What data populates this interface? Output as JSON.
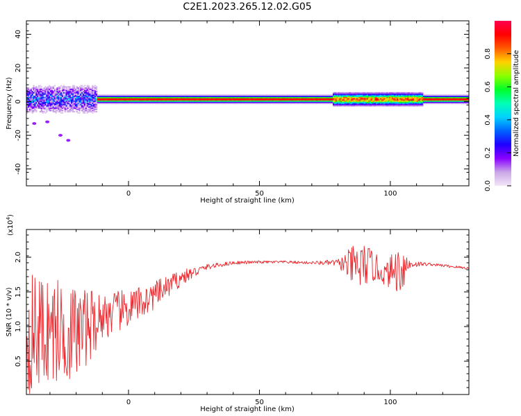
{
  "figure": {
    "title": "C2E1.2023.265.12.02.G05"
  },
  "chart_data": [
    {
      "type": "heatmap",
      "xlabel": "Height of straight line (km)",
      "ylabel": "Frequency (Hz)",
      "xlim": [
        -39,
        130
      ],
      "ylim": [
        -50,
        48
      ],
      "x_ticks": [
        0,
        50,
        100
      ],
      "y_ticks": [
        -40,
        -20,
        0,
        20,
        40
      ],
      "x_tick_labels": [
        "0",
        "50",
        "100"
      ],
      "y_tick_labels": [
        "-40",
        "-20",
        "0",
        "20",
        "40"
      ],
      "colorbar": {
        "label": "Normalized spectral amplitude",
        "range": [
          0,
          1
        ],
        "ticks": [
          0,
          0.2,
          0.4,
          0.6,
          0.8
        ],
        "tick_labels": [
          "0.0",
          "0.2",
          "0.4",
          "0.6",
          "0.8"
        ],
        "colormap": [
          "#f4e6f7",
          "#c9a6e6",
          "#8a00ff",
          "#1e00ff",
          "#0064ff",
          "#00d2ff",
          "#00ffb4",
          "#00ff28",
          "#8cff00",
          "#ffd200",
          "#ff5a00",
          "#ff0000",
          "#ff0050"
        ]
      },
      "band": {
        "center_hz": 1.5,
        "core_amplitude": 0.95,
        "x_start_km": -12
      },
      "noisy_region_km": [
        -39,
        -12
      ],
      "noisy_region_freq_hz": [
        -6,
        10
      ],
      "disturbed_region_km": [
        78,
        112
      ],
      "grid": false
    },
    {
      "type": "line",
      "xlabel": "Height of straight line (km)",
      "ylabel": "SNR (10 * v/v)",
      "y_multiplier_label": "(x10",
      "y_multiplier_exp": "4",
      "y_multiplier_close": ")",
      "xlim": [
        -39,
        130
      ],
      "ylim": [
        0.02,
        2.4
      ],
      "x_ticks": [
        0,
        50,
        100
      ],
      "y_ticks": [
        0.5,
        1.0,
        1.5,
        2.0
      ],
      "x_tick_labels": [
        "0",
        "50",
        "100"
      ],
      "y_tick_labels": [
        "0.5",
        "1.0",
        "1.5",
        "2.0"
      ],
      "line_color": "#e8262b",
      "series": [
        {
          "x": [
            -39,
            -30,
            -20,
            -10,
            0,
            10,
            20,
            30,
            40,
            50,
            60,
            70,
            80,
            88,
            92,
            98,
            104,
            108,
            115,
            125,
            130
          ],
          "y": [
            0.9,
            0.95,
            0.9,
            1.15,
            1.25,
            1.45,
            1.7,
            1.86,
            1.92,
            1.93,
            1.93,
            1.92,
            1.92,
            1.85,
            1.9,
            1.75,
            1.85,
            1.9,
            1.9,
            1.86,
            1.84
          ],
          "noise_amplitude": [
            0.9,
            0.8,
            0.7,
            0.35,
            0.28,
            0.2,
            0.12,
            0.04,
            0.025,
            0.02,
            0.02,
            0.02,
            0.05,
            0.4,
            0.25,
            0.15,
            0.4,
            0.05,
            0.02,
            0.02,
            0.02
          ]
        }
      ],
      "grid": false
    }
  ]
}
